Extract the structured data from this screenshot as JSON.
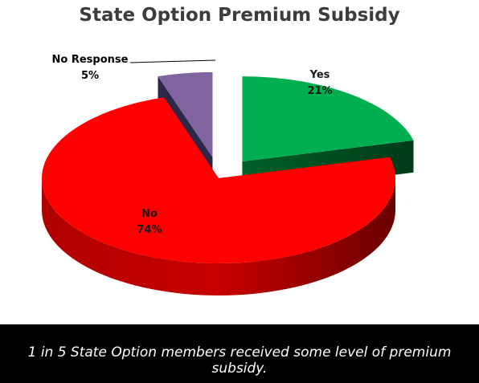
{
  "chart_data": {
    "type": "pie",
    "title": "State Option Premium Subsidy",
    "labels": [
      "Yes",
      "No",
      "No Response"
    ],
    "values": [
      21,
      74,
      5
    ],
    "value_labels": [
      "21%",
      "74%",
      "5%"
    ],
    "colors": [
      "#00b050",
      "#ff0000",
      "#8064a2"
    ],
    "style": "3d-exploded"
  },
  "caption": "1 in 5 State Option members received some level of premium subsidy."
}
